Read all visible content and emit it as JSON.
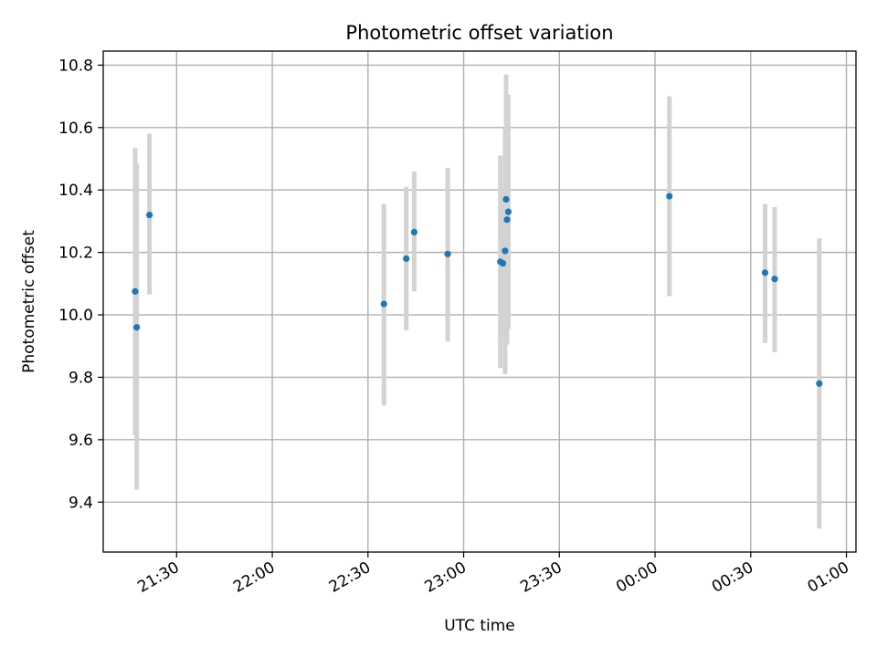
{
  "chart_data": {
    "type": "scatter",
    "title": "Photometric offset variation",
    "xlabel": "UTC time",
    "ylabel": "Photometric offset",
    "x_axis": {
      "kind": "time",
      "range": [
        "21:07",
        "01:03"
      ],
      "ticks": [
        "21:30",
        "22:00",
        "22:30",
        "23:00",
        "23:30",
        "00:00",
        "00:30",
        "01:00"
      ],
      "tick_rotation_deg": 30
    },
    "y_axis": {
      "range": [
        9.24,
        10.845
      ],
      "ticks": [
        "9.4",
        "9.6",
        "9.8",
        "10.0",
        "10.2",
        "10.4",
        "10.6",
        "10.8"
      ]
    },
    "grid": true,
    "colors": {
      "point": "#1f77b4",
      "errorbar": "#d3d3d3",
      "grid": "#b0b0b0"
    },
    "points": [
      {
        "x": "21:17",
        "y": 10.075,
        "err_low": 9.615,
        "err_high": 10.535
      },
      {
        "x": "21:17.5",
        "y": 9.96,
        "err_low": 9.44,
        "err_high": 10.485
      },
      {
        "x": "21:21.5",
        "y": 10.32,
        "err_low": 10.065,
        "err_high": 10.58
      },
      {
        "x": "22:35",
        "y": 10.035,
        "err_low": 9.71,
        "err_high": 10.355
      },
      {
        "x": "22:42",
        "y": 10.18,
        "err_low": 9.95,
        "err_high": 10.41
      },
      {
        "x": "22:44.5",
        "y": 10.265,
        "err_low": 10.075,
        "err_high": 10.46
      },
      {
        "x": "22:55",
        "y": 10.195,
        "err_low": 9.915,
        "err_high": 10.47
      },
      {
        "x": "23:11.5",
        "y": 10.17,
        "err_low": 9.83,
        "err_high": 10.51
      },
      {
        "x": "23:12.3",
        "y": 10.165,
        "err_low": 9.93,
        "err_high": 10.4
      },
      {
        "x": "23:13",
        "y": 10.205,
        "err_low": 9.81,
        "err_high": 10.6
      },
      {
        "x": "23:13.3",
        "y": 10.37,
        "err_low": 9.97,
        "err_high": 10.77
      },
      {
        "x": "23:13.6",
        "y": 10.305,
        "err_low": 9.905,
        "err_high": 10.7
      },
      {
        "x": "23:14",
        "y": 10.33,
        "err_low": 9.955,
        "err_high": 10.705
      },
      {
        "x": "00:04.5",
        "y": 10.38,
        "err_low": 10.06,
        "err_high": 10.7
      },
      {
        "x": "00:34.5",
        "y": 10.135,
        "err_low": 9.91,
        "err_high": 10.355
      },
      {
        "x": "00:37.5",
        "y": 10.115,
        "err_low": 9.88,
        "err_high": 10.345
      },
      {
        "x": "00:51.5",
        "y": 9.78,
        "err_low": 9.315,
        "err_high": 10.245
      }
    ]
  }
}
